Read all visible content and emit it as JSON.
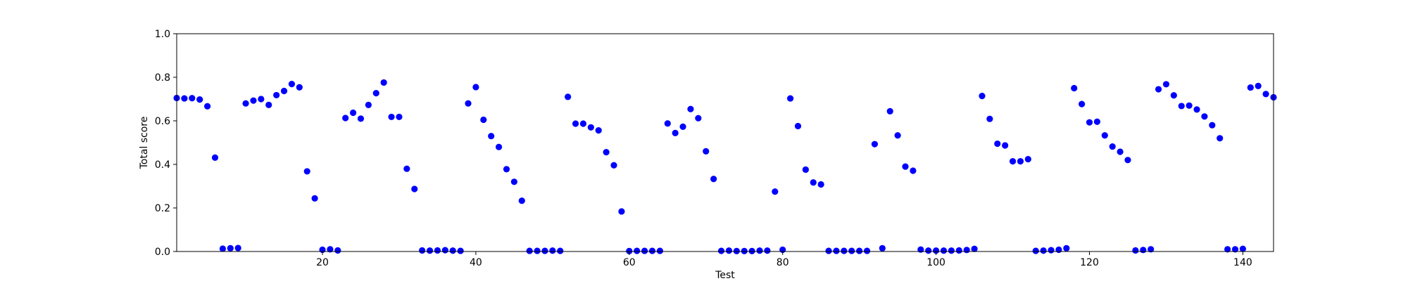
{
  "chart_data": {
    "type": "scatter",
    "xlabel": "Test",
    "ylabel": "Total score",
    "xlim": [
      1,
      144
    ],
    "ylim": [
      0,
      1
    ],
    "xticks": [
      20,
      40,
      60,
      80,
      100,
      120,
      140
    ],
    "xtick_labels": [
      "20",
      "40",
      "60",
      "80",
      "100",
      "120",
      "140"
    ],
    "yticks": [
      0.0,
      0.2,
      0.4,
      0.6,
      0.8,
      1.0
    ],
    "ytick_labels": [
      "0.0",
      "0.2",
      "0.4",
      "0.6",
      "0.8",
      "1.0"
    ],
    "grid": false,
    "marker_color": "#0000ff",
    "series": [
      {
        "x": [
          1,
          2,
          3,
          4,
          5,
          6,
          7,
          8,
          9,
          10,
          11,
          12,
          13,
          14,
          15,
          16,
          17,
          18,
          19,
          20,
          21,
          22,
          23,
          24,
          25,
          26,
          27,
          28,
          29,
          30,
          31,
          32,
          33,
          34,
          35,
          36,
          37,
          38,
          39,
          40,
          41,
          42,
          43,
          44,
          45,
          46,
          47,
          48,
          49,
          50,
          51,
          52,
          53,
          54,
          55,
          56,
          57,
          58,
          59,
          60,
          61,
          62,
          63,
          64,
          65,
          66,
          67,
          68,
          69,
          70,
          71,
          72,
          73,
          74,
          75,
          76,
          77,
          78,
          79,
          80,
          81,
          82,
          83,
          84,
          85,
          86,
          87,
          88,
          89,
          90,
          91,
          92,
          93,
          94,
          95,
          96,
          97,
          98,
          99,
          100,
          101,
          102,
          103,
          104,
          105,
          106,
          107,
          108,
          109,
          110,
          111,
          112,
          113,
          114,
          115,
          116,
          117,
          118,
          119,
          120,
          121,
          122,
          123,
          124,
          125,
          126,
          127,
          128,
          129,
          130,
          131,
          132,
          133,
          134,
          135,
          136,
          137,
          138,
          139,
          140,
          141,
          142,
          143,
          144
        ],
        "y": [
          0.705,
          0.703,
          0.704,
          0.698,
          0.667,
          0.431,
          0.013,
          0.015,
          0.016,
          0.68,
          0.693,
          0.7,
          0.673,
          0.718,
          0.737,
          0.769,
          0.754,
          0.368,
          0.244,
          0.008,
          0.01,
          0.005,
          0.613,
          0.637,
          0.61,
          0.673,
          0.727,
          0.776,
          0.618,
          0.618,
          0.38,
          0.287,
          0.005,
          0.004,
          0.005,
          0.006,
          0.004,
          0.003,
          0.68,
          0.755,
          0.605,
          0.53,
          0.48,
          0.378,
          0.32,
          0.233,
          0.003,
          0.003,
          0.003,
          0.004,
          0.003,
          0.71,
          0.587,
          0.587,
          0.57,
          0.556,
          0.456,
          0.396,
          0.184,
          0.002,
          0.003,
          0.003,
          0.003,
          0.003,
          0.588,
          0.544,
          0.573,
          0.654,
          0.612,
          0.46,
          0.333,
          0.003,
          0.004,
          0.002,
          0.002,
          0.002,
          0.004,
          0.004,
          0.275,
          0.008,
          0.703,
          0.576,
          0.376,
          0.317,
          0.308,
          0.003,
          0.003,
          0.003,
          0.003,
          0.003,
          0.003,
          0.493,
          0.015,
          0.644,
          0.533,
          0.39,
          0.371,
          0.009,
          0.004,
          0.004,
          0.004,
          0.004,
          0.005,
          0.007,
          0.012,
          0.714,
          0.609,
          0.495,
          0.487,
          0.414,
          0.414,
          0.424,
          0.003,
          0.004,
          0.006,
          0.008,
          0.015,
          0.75,
          0.677,
          0.593,
          0.596,
          0.533,
          0.482,
          0.458,
          0.42,
          0.005,
          0.007,
          0.01,
          0.745,
          0.768,
          0.717,
          0.668,
          0.67,
          0.652,
          0.62,
          0.58,
          0.52,
          0.01,
          0.01,
          0.012,
          0.753,
          0.76,
          0.723,
          0.708
        ]
      }
    ]
  }
}
